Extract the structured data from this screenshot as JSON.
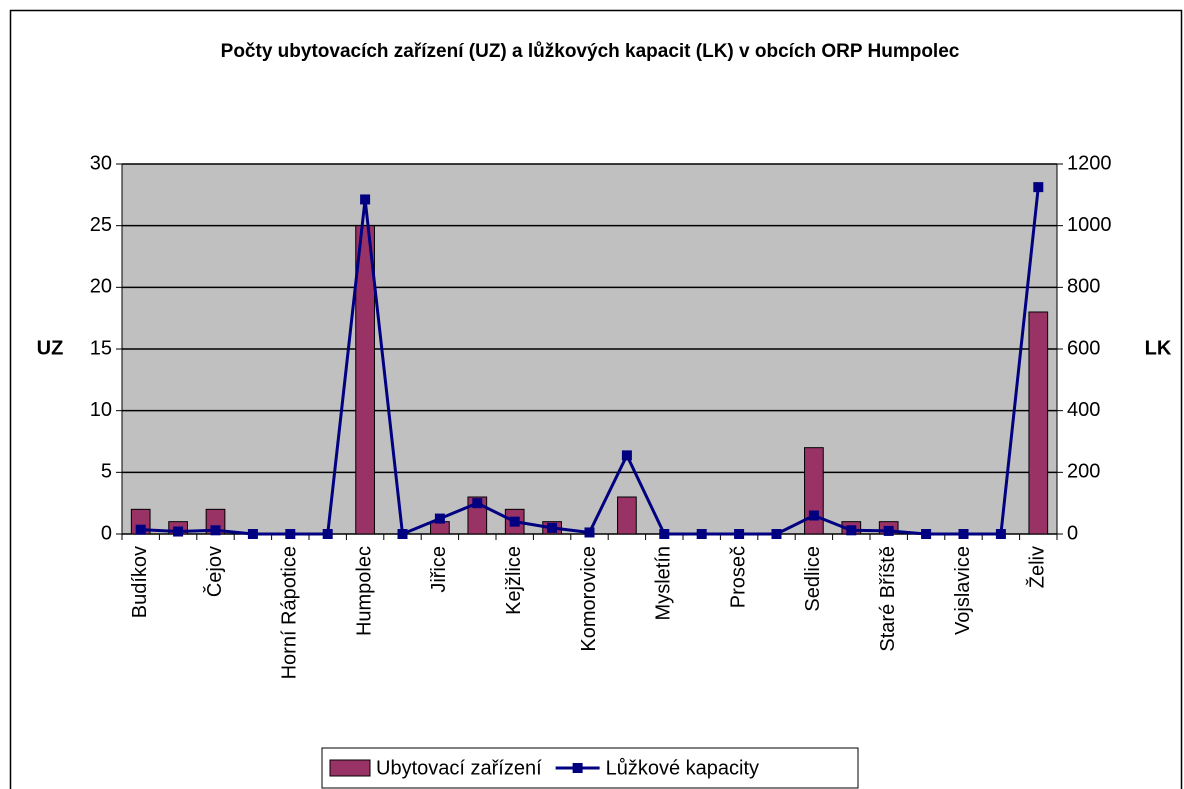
{
  "chart_data": {
    "type": "bar-line",
    "title": "Počty ubytovacích zařízení (UZ) a lůžkových kapacit (LK) v obcích ORP Humpolec",
    "ylabel": "UZ",
    "y2label": "LK",
    "categories": [
      "Budíkov",
      null,
      "Čejov",
      null,
      "Horní Rápotice",
      null,
      "Humpolec",
      null,
      "Jiřice",
      null,
      "Kejžlice",
      null,
      "Komorovice",
      null,
      "Mysletín",
      null,
      "Proseč",
      null,
      "Sedlice",
      null,
      "Staré Bříště",
      null,
      "Vojslavice",
      null,
      "Želiv"
    ],
    "series": [
      {
        "name": "Ubytovací zařízení",
        "type": "bar",
        "color": "#993366",
        "values": [
          2,
          1,
          2,
          0,
          0,
          0,
          25,
          0,
          1,
          3,
          2,
          1,
          0,
          3,
          0,
          0,
          0,
          0,
          7,
          1,
          1,
          0,
          0,
          0,
          18
        ]
      },
      {
        "name": "Lůžkové kapacity",
        "type": "line",
        "axis": "y2",
        "color": "#000080",
        "values": [
          14,
          8,
          12,
          0,
          0,
          0,
          1085,
          0,
          50,
          100,
          40,
          20,
          5,
          255,
          0,
          0,
          0,
          0,
          60,
          12,
          10,
          0,
          0,
          0,
          1125
        ]
      }
    ],
    "ylim": [
      0,
      30
    ],
    "yticks": [
      0,
      5,
      10,
      15,
      20,
      25,
      30
    ],
    "y2lim": [
      0,
      1200
    ],
    "y2ticks": [
      0,
      200,
      400,
      600,
      800,
      1000,
      1200
    ],
    "grid": true,
    "legend": "bottom"
  }
}
